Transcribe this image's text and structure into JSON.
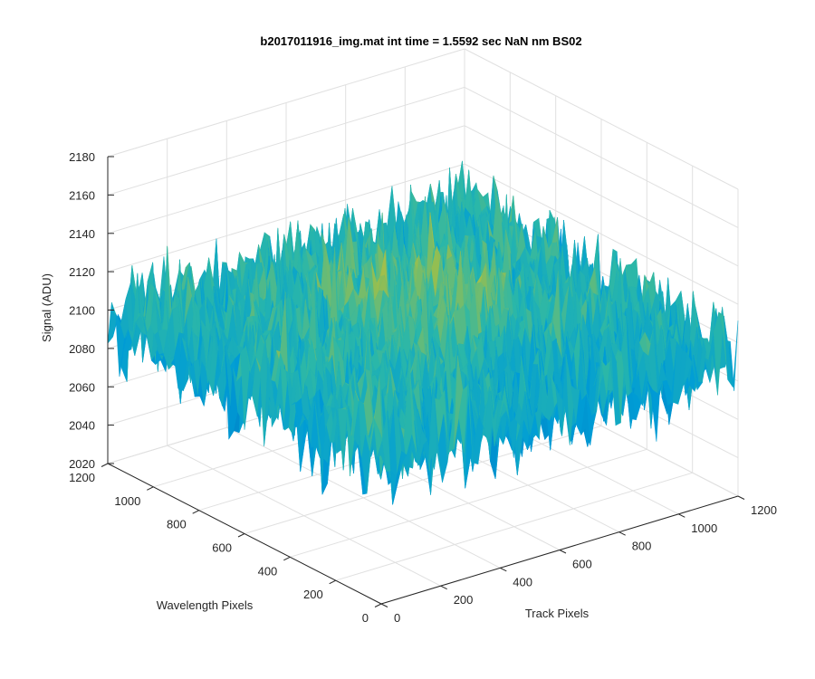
{
  "chart_data": {
    "type": "surface",
    "title": "b2017011916_img.mat int time = 1.5592 sec  NaN nm BS02",
    "xlabel": "Track Pixels",
    "ylabel": "Wavelength Pixels",
    "zlabel": "Signal (ADU)",
    "xlim": [
      0,
      1200
    ],
    "ylim": [
      0,
      1200
    ],
    "zlim": [
      2020,
      2180
    ],
    "x_ticks": [
      "0",
      "200",
      "400",
      "600",
      "800",
      "1000",
      "1200"
    ],
    "y_ticks": [
      "0",
      "200",
      "400",
      "600",
      "800",
      "1000",
      "1200"
    ],
    "z_ticks": [
      "2020",
      "2040",
      "2060",
      "2080",
      "2100",
      "2120",
      "2140",
      "2160",
      "2180"
    ],
    "grid": true,
    "colormap": "parula",
    "surface": {
      "mean_signal": 2095,
      "signal_min": 2035,
      "signal_max": 2170,
      "description": "noisy dark-frame surface with center peak near 2170 ADU"
    },
    "colors": {
      "low": "#0072BD",
      "mid": "#2AB7A9",
      "high": "#E6C53A",
      "axis": "#262626",
      "grid": "#E0E0E0"
    }
  }
}
